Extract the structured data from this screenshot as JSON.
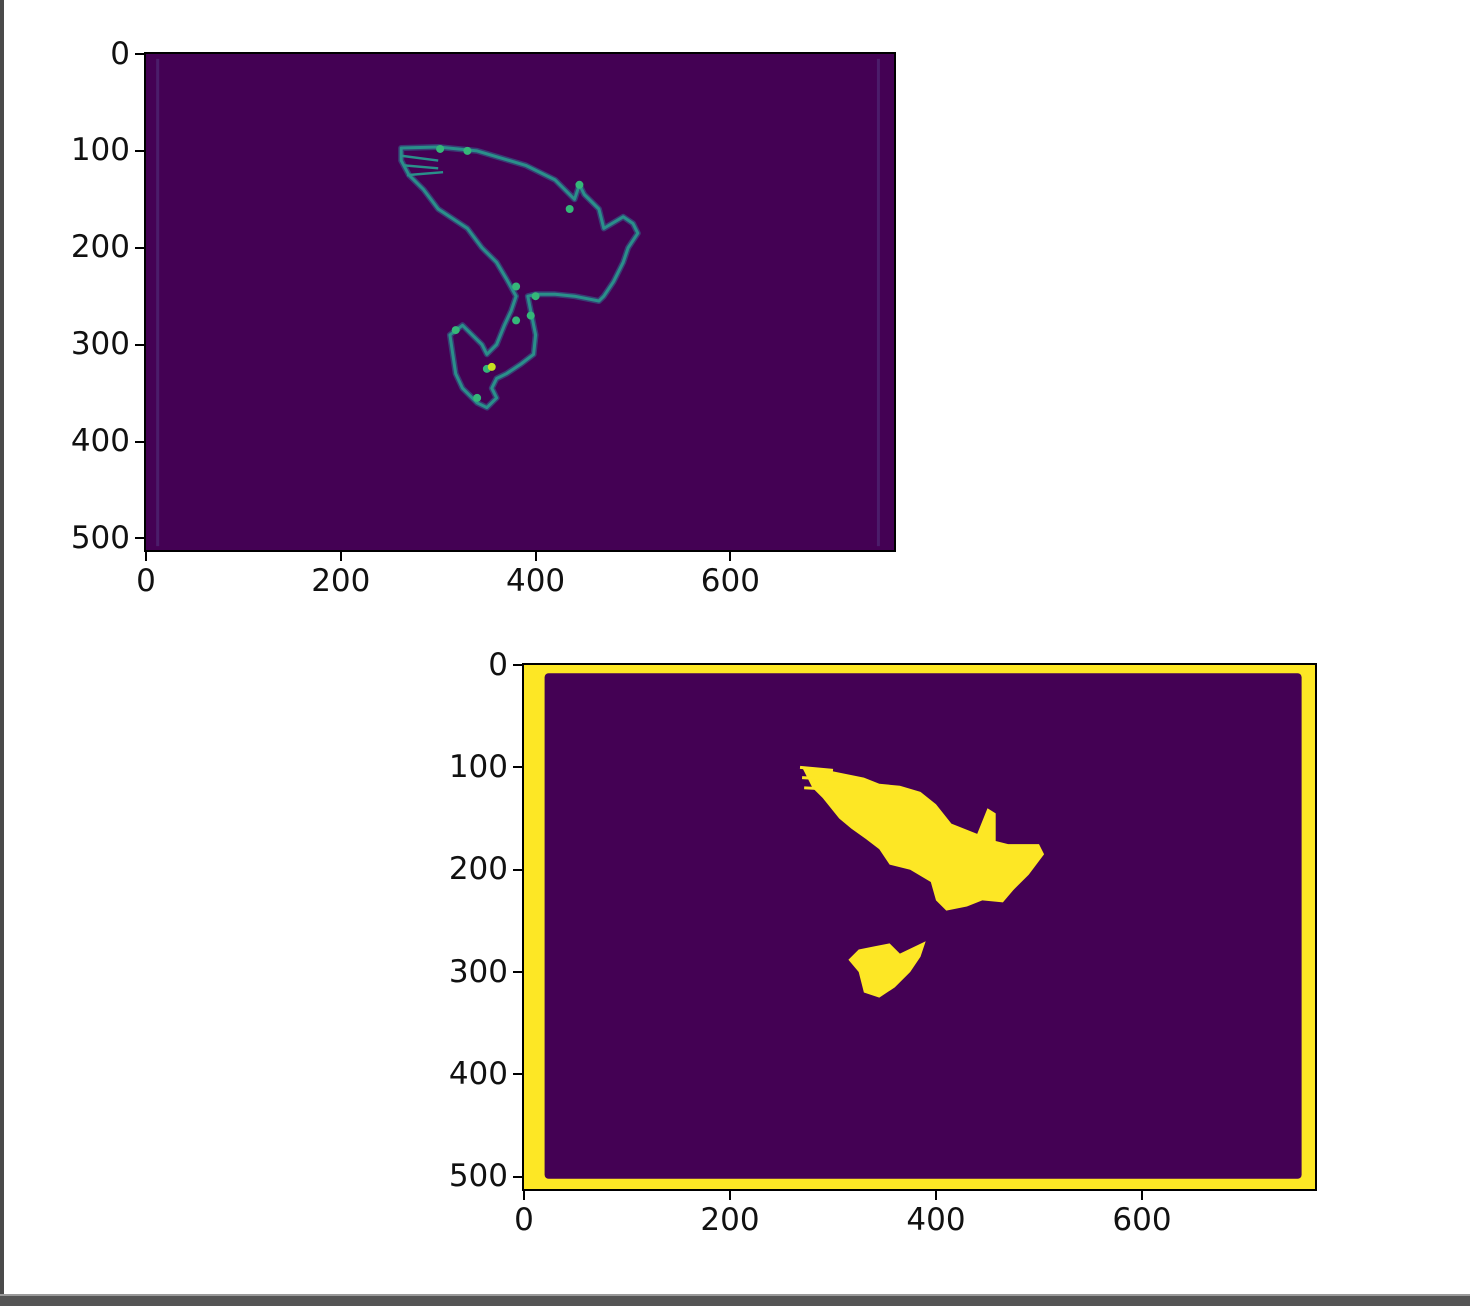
{
  "colors": {
    "background_purple": "#440154",
    "edge_teal": "#2a8f8a",
    "edge_bright": "#35b779",
    "edge_peak": "#c8e020",
    "mask_yellow": "#fde725"
  },
  "chart_data": [
    {
      "type": "heatmap",
      "title": "",
      "xlabel": "",
      "ylabel": "",
      "colormap": "viridis",
      "xlim": [
        0,
        768
      ],
      "ylim": [
        512,
        0
      ],
      "xticks": [
        0,
        200,
        400,
        600
      ],
      "yticks": [
        0,
        100,
        200,
        300,
        400,
        500
      ],
      "xtick_labels": [
        "0",
        "200",
        "400",
        "600"
      ],
      "ytick_labels": [
        "0",
        "100",
        "200",
        "300",
        "400",
        "500"
      ],
      "content": "edge-magnitude map of a bird silhouette",
      "edge_outline": [
        [
          262,
          97
        ],
        [
          300,
          96
        ],
        [
          340,
          100
        ],
        [
          390,
          115
        ],
        [
          420,
          130
        ],
        [
          440,
          150
        ],
        [
          445,
          135
        ],
        [
          450,
          145
        ],
        [
          465,
          160
        ],
        [
          470,
          180
        ],
        [
          490,
          168
        ],
        [
          500,
          175
        ],
        [
          505,
          185
        ],
        [
          495,
          200
        ],
        [
          490,
          215
        ],
        [
          480,
          235
        ],
        [
          470,
          250
        ],
        [
          465,
          255
        ],
        [
          440,
          250
        ],
        [
          420,
          248
        ],
        [
          400,
          248
        ],
        [
          392,
          250
        ],
        [
          395,
          265
        ],
        [
          400,
          290
        ],
        [
          398,
          310
        ],
        [
          385,
          320
        ],
        [
          370,
          330
        ],
        [
          360,
          335
        ],
        [
          355,
          345
        ],
        [
          360,
          355
        ],
        [
          350,
          365
        ],
        [
          340,
          360
        ],
        [
          325,
          345
        ],
        [
          318,
          330
        ],
        [
          312,
          290
        ],
        [
          325,
          280
        ],
        [
          345,
          300
        ],
        [
          350,
          310
        ],
        [
          360,
          300
        ],
        [
          368,
          280
        ],
        [
          375,
          265
        ],
        [
          380,
          250
        ],
        [
          370,
          232
        ],
        [
          360,
          215
        ],
        [
          345,
          200
        ],
        [
          330,
          180
        ],
        [
          300,
          160
        ],
        [
          285,
          140
        ],
        [
          270,
          125
        ],
        [
          262,
          110
        ]
      ],
      "bright_points": [
        [
          302,
          98
        ],
        [
          330,
          100
        ],
        [
          445,
          135
        ],
        [
          435,
          160
        ],
        [
          380,
          240
        ],
        [
          400,
          250
        ],
        [
          395,
          270
        ],
        [
          380,
          275
        ],
        [
          318,
          285
        ],
        [
          350,
          325
        ],
        [
          355,
          323
        ],
        [
          340,
          355
        ]
      ]
    },
    {
      "type": "heatmap",
      "title": "",
      "xlabel": "",
      "ylabel": "",
      "colormap": "viridis",
      "xlim": [
        0,
        768
      ],
      "ylim": [
        512,
        0
      ],
      "xticks": [
        0,
        200,
        400,
        600
      ],
      "yticks": [
        0,
        100,
        200,
        300,
        400,
        500
      ],
      "xtick_labels": [
        "0",
        "200",
        "400",
        "600"
      ],
      "ytick_labels": [
        "0",
        "100",
        "200",
        "300",
        "400",
        "500"
      ],
      "content": "binary segmentation mask",
      "mask_border": {
        "left": [
          0,
          20
        ],
        "right": [
          755,
          768
        ],
        "top": [
          0,
          8
        ],
        "bottom": [
          502,
          512
        ]
      },
      "mask_regions": [
        [
          [
            270,
            100
          ],
          [
            300,
            104
          ],
          [
            330,
            110
          ],
          [
            345,
            116
          ],
          [
            365,
            118
          ],
          [
            385,
            124
          ],
          [
            400,
            136
          ],
          [
            415,
            155
          ],
          [
            440,
            165
          ],
          [
            450,
            140
          ],
          [
            458,
            145
          ],
          [
            458,
            172
          ],
          [
            470,
            175
          ],
          [
            500,
            175
          ],
          [
            505,
            185
          ],
          [
            490,
            205
          ],
          [
            475,
            220
          ],
          [
            465,
            232
          ],
          [
            445,
            230
          ],
          [
            430,
            236
          ],
          [
            410,
            240
          ],
          [
            400,
            230
          ],
          [
            395,
            212
          ],
          [
            375,
            200
          ],
          [
            355,
            195
          ],
          [
            345,
            180
          ],
          [
            332,
            170
          ],
          [
            318,
            160
          ],
          [
            306,
            150
          ],
          [
            290,
            130
          ],
          [
            280,
            120
          ]
        ],
        [
          [
            315,
            288
          ],
          [
            325,
            278
          ],
          [
            340,
            275
          ],
          [
            355,
            272
          ],
          [
            365,
            282
          ],
          [
            390,
            270
          ],
          [
            385,
            285
          ],
          [
            375,
            300
          ],
          [
            360,
            315
          ],
          [
            345,
            325
          ],
          [
            330,
            320
          ],
          [
            325,
            300
          ]
        ]
      ]
    }
  ]
}
